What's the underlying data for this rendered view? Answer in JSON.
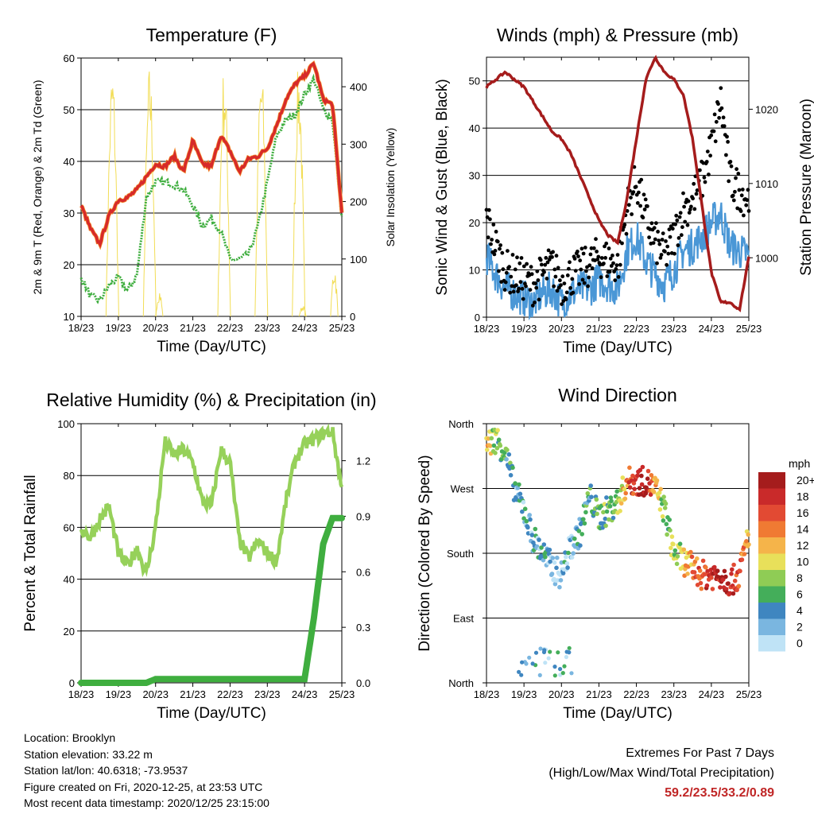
{
  "time_ticks": [
    "18/23",
    "19/23",
    "20/23",
    "21/23",
    "22/23",
    "23/23",
    "24/23",
    "25/23"
  ],
  "time_label": "Time (Day/UTC)",
  "footer": {
    "location": "Location: Brooklyn",
    "elevation": "Station elevation: 33.22 m",
    "latlon": "Station lat/lon: 40.6318; -73.9537",
    "created": "Figure created on Fri, 2020-12-25, at 23:53 UTC",
    "recent": "Most recent data timestamp: 2020/12/25 23:15:00",
    "extremes_title": "Extremes For Past 7 Days",
    "extremes_sub": "(High/Low/Max Wind/Total Precipitation)",
    "extremes_values": "59.2/23.5/33.2/0.89"
  },
  "chart_data": [
    {
      "type": "line",
      "title": "Temperature (F)",
      "xlabel": "Time (Day/UTC)",
      "ylabel": "2m & 9m T (Red, Orange) & 2m Td (Green)",
      "y2label": "Solar Insolation (Yellow)",
      "ylim": [
        10,
        60
      ],
      "y2lim": [
        0,
        450
      ],
      "yticks": [
        10,
        20,
        30,
        40,
        50,
        60
      ],
      "y2ticks": [
        0,
        100,
        200,
        300,
        400
      ],
      "x": [
        0,
        0.25,
        0.5,
        0.75,
        1,
        1.25,
        1.5,
        1.75,
        2,
        2.25,
        2.5,
        2.75,
        3,
        3.25,
        3.5,
        3.75,
        4,
        4.25,
        4.5,
        4.75,
        5,
        5.25,
        5.5,
        5.75,
        6,
        6.25,
        6.5,
        6.75,
        7
      ],
      "series": [
        {
          "values": [
            31.5,
            27,
            24,
            29.5,
            32.5,
            33,
            34.5,
            37,
            39.5,
            39,
            41,
            38,
            44,
            39.5,
            39,
            45,
            42,
            38,
            40.5,
            41,
            42.5,
            47,
            52,
            55,
            56.5,
            59,
            52,
            51,
            30
          ],
          "color": "#d62a2a"
        },
        {
          "values": [
            17.5,
            14,
            13,
            16,
            17.5,
            15,
            18,
            33,
            36,
            36,
            35.5,
            34.5,
            31.5,
            27.5,
            29,
            26.5,
            21,
            21,
            22,
            27.5,
            36,
            45,
            48,
            49,
            53,
            56,
            50,
            48,
            29
          ],
          "color": "#3fae3f"
        },
        {
          "values": [
            0,
            0,
            0,
            0,
            0,
            0,
            0,
            0,
            0,
            0,
            0,
            0,
            0,
            0,
            0,
            0,
            0,
            0,
            0,
            0,
            0,
            0,
            0,
            0,
            0,
            0,
            0,
            0,
            0
          ],
          "color": "#f2dd55"
        }
      ],
      "insolation_peaks_day": [
        0.85,
        1.85,
        3.85,
        4.85,
        5.85
      ],
      "insolation_peak_values": [
        440,
        440,
        440,
        440,
        440
      ]
    },
    {
      "type": "scatter",
      "title": "Winds (mph) & Pressure (mb)",
      "xlabel": "Time (Day/UTC)",
      "ylabel": "Sonic Wind & Gust (Blue, Black)",
      "y2label": "Station Pressure (Maroon)",
      "ylim": [
        0,
        55
      ],
      "y2lim": [
        992,
        1027
      ],
      "yticks": [
        0,
        10,
        20,
        30,
        40,
        50
      ],
      "y2ticks": [
        1000,
        1010,
        1020
      ],
      "x": [
        0,
        0.25,
        0.5,
        0.75,
        1,
        1.25,
        1.5,
        1.75,
        2,
        2.25,
        2.5,
        2.75,
        3,
        3.25,
        3.5,
        3.75,
        4,
        4.25,
        4.5,
        4.75,
        5,
        5.25,
        5.5,
        5.75,
        6,
        6.25,
        6.5,
        6.75,
        7
      ],
      "series": [
        {
          "name": "Gust",
          "values": [
            20,
            14,
            9,
            8,
            7,
            6,
            8,
            10,
            6,
            8,
            9,
            10,
            12,
            11,
            10,
            22,
            28,
            20,
            15,
            12,
            16,
            22,
            24,
            28,
            35,
            45,
            28,
            26,
            24
          ],
          "color": "#000000"
        },
        {
          "name": "Wind",
          "values": [
            13,
            9,
            6,
            5,
            4,
            3,
            5,
            6,
            3,
            5,
            6,
            6,
            8,
            7,
            6,
            14,
            17,
            12,
            9,
            7,
            10,
            14,
            15,
            17,
            20,
            22,
            15,
            14,
            13
          ],
          "color": "#4a97d6"
        },
        {
          "name": "Pressure",
          "values": [
            1023,
            1024,
            1025,
            1024,
            1023,
            1021,
            1019,
            1017,
            1016,
            1014,
            1011,
            1008,
            1005,
            1003,
            1002,
            1008,
            1016,
            1024,
            1027,
            1025,
            1024,
            1022,
            1016,
            1007,
            998,
            994,
            994,
            993,
            1000
          ],
          "color": "#a51c1c"
        }
      ]
    },
    {
      "type": "line",
      "title": "Relative Humidity (%) & Precipitation (in)",
      "xlabel": "Time (Day/UTC)",
      "ylabel": "Percent & Total Rainfall",
      "ylim": [
        0,
        100
      ],
      "y2lim": [
        0,
        1.4
      ],
      "yticks": [
        0,
        20,
        40,
        60,
        80,
        100
      ],
      "y2ticks": [
        "0.0",
        "0.3",
        "0.6",
        "0.9",
        "1.2"
      ],
      "x": [
        0,
        0.25,
        0.5,
        0.75,
        1,
        1.25,
        1.5,
        1.75,
        2,
        2.25,
        2.5,
        2.75,
        3,
        3.25,
        3.5,
        3.75,
        4,
        4.25,
        4.5,
        4.75,
        5,
        5.25,
        5.5,
        5.75,
        6,
        6.25,
        6.5,
        6.75,
        7
      ],
      "series": [
        {
          "name": "Relative Humidity",
          "values": [
            60,
            56,
            63,
            68,
            50,
            45,
            52,
            42,
            60,
            93,
            88,
            90,
            85,
            70,
            68,
            90,
            85,
            55,
            48,
            55,
            50,
            47,
            70,
            86,
            92,
            94,
            96,
            97,
            75
          ],
          "color": "#96d15a"
        },
        {
          "name": "Total Precipitation",
          "values": [
            0,
            0,
            0,
            0,
            0,
            0,
            0,
            0,
            0.02,
            0.02,
            0.02,
            0.02,
            0.02,
            0.02,
            0.02,
            0.02,
            0.02,
            0.02,
            0.02,
            0.02,
            0.02,
            0.02,
            0.02,
            0.02,
            0.02,
            0.35,
            0.75,
            0.89,
            0.89
          ],
          "color": "#3fae3f"
        }
      ]
    },
    {
      "type": "scatter",
      "title": "Wind Direction",
      "xlabel": "Time (Day/UTC)",
      "ylabel": "Direction (Colored By Speed)",
      "yticks": [
        "North",
        "West",
        "South",
        "East",
        "North"
      ],
      "ylim": [
        0,
        360
      ],
      "legend_title": "mph",
      "legend_labels": [
        "20+",
        "18",
        "16",
        "14",
        "12",
        "10",
        "8",
        "6",
        "4",
        "2",
        "0"
      ],
      "legend_colors": [
        "#a51c1c",
        "#c92a2a",
        "#e24a33",
        "#f07a33",
        "#f5b44a",
        "#e8e05a",
        "#8fcc55",
        "#44ae5a",
        "#3f86c0",
        "#7ab6e0",
        "#bfe3f6"
      ],
      "x": [
        0,
        0.25,
        0.5,
        0.75,
        1,
        1.25,
        1.5,
        1.75,
        2,
        2.25,
        2.5,
        2.75,
        3,
        3.25,
        3.5,
        3.75,
        4,
        4.25,
        4.5,
        4.75,
        5,
        5.25,
        5.5,
        5.75,
        6,
        6.25,
        6.5,
        6.75,
        7
      ],
      "direction": [
        330,
        340,
        320,
        270,
        240,
        200,
        180,
        160,
        150,
        190,
        210,
        260,
        230,
        240,
        250,
        280,
        280,
        280,
        270,
        240,
        180,
        170,
        160,
        150,
        150,
        150,
        140,
        150,
        210
      ],
      "speed": [
        12,
        8,
        6,
        4,
        3,
        3,
        4,
        3,
        2,
        3,
        4,
        5,
        6,
        7,
        8,
        14,
        18,
        20,
        12,
        6,
        8,
        10,
        14,
        16,
        18,
        20,
        18,
        16,
        12
      ]
    }
  ]
}
